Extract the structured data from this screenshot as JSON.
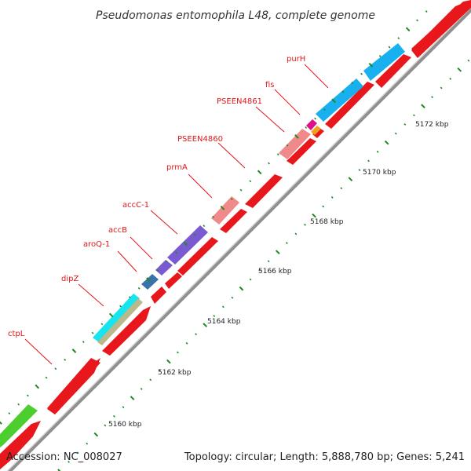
{
  "title": "Pseudomonas entomophila L48, complete genome",
  "footer": {
    "accession": "Accession: NC_008027",
    "summary": "Topology: circular; Length: 5,888,780 bp; Genes: 5,241"
  },
  "gene_labels": [
    "ctpL",
    "dipZ",
    "aroQ-1",
    "accB",
    "accC-1",
    "prmA",
    "PSEEN4860",
    "PSEEN4861",
    "fis",
    "purH"
  ],
  "scale_labels": [
    "5160 kbp",
    "5162 kbp",
    "5164 kbp",
    "5166 kbp",
    "5168 kbp",
    "5170 kbp",
    "5172 kbp"
  ],
  "colors": {
    "cds_red": "#e8171b",
    "backbone": "#909090",
    "tick_green": "#1f8a1f",
    "ctpL": "#4ccf2e",
    "dipZ_cyan": "#16e5f0",
    "dipZ_olive": "#b9b98c",
    "aroQ": "#3a73a8",
    "acc": "#7a5ad0",
    "prmA": "#f08a8a",
    "fis": "#e0108a",
    "fis_orange": "#f0a21a",
    "purH": "#18b0ee"
  }
}
